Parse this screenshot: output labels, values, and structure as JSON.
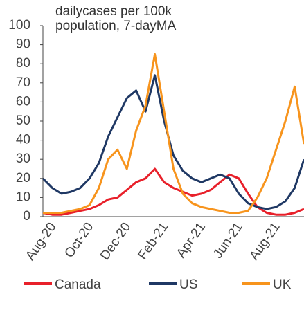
{
  "chart_data": {
    "type": "line",
    "title": "dailycases per 100k population, 7-dayMA",
    "categories": [
      null,
      "Aug-20",
      null,
      null,
      null,
      "Oct-20",
      null,
      null,
      null,
      "Dec-20",
      null,
      null,
      null,
      "Feb-21",
      null,
      null,
      null,
      "Apr-21",
      null,
      null,
      null,
      "Jun-21",
      null,
      null,
      null,
      "Aug-21",
      null,
      null,
      null
    ],
    "series": [
      {
        "name": "Canada",
        "color": "#e8202a",
        "values": [
          2,
          1,
          1,
          2,
          3,
          4,
          6,
          9,
          10,
          14,
          18,
          20,
          25,
          18,
          15,
          13,
          11,
          12,
          14,
          18,
          22,
          20,
          12,
          5,
          2,
          1,
          1,
          2,
          4
        ]
      },
      {
        "name": "US",
        "color": "#1f3864",
        "values": [
          20,
          15,
          12,
          13,
          15,
          20,
          28,
          42,
          52,
          62,
          66,
          55,
          74,
          50,
          32,
          24,
          20,
          18,
          20,
          22,
          20,
          12,
          7,
          5,
          4,
          5,
          8,
          15,
          30
        ]
      },
      {
        "name": "UK",
        "color": "#f7941d",
        "values": [
          2,
          2,
          2,
          3,
          4,
          6,
          15,
          30,
          35,
          25,
          45,
          58,
          85,
          55,
          25,
          12,
          7,
          5,
          4,
          3,
          2,
          2,
          3,
          10,
          20,
          35,
          50,
          68,
          38
        ]
      }
    ],
    "ylim": [
      0,
      100
    ],
    "yticks": [
      0,
      10,
      20,
      30,
      40,
      50,
      60,
      70,
      80,
      90,
      100
    ],
    "grid": false,
    "legend": "bottom"
  }
}
